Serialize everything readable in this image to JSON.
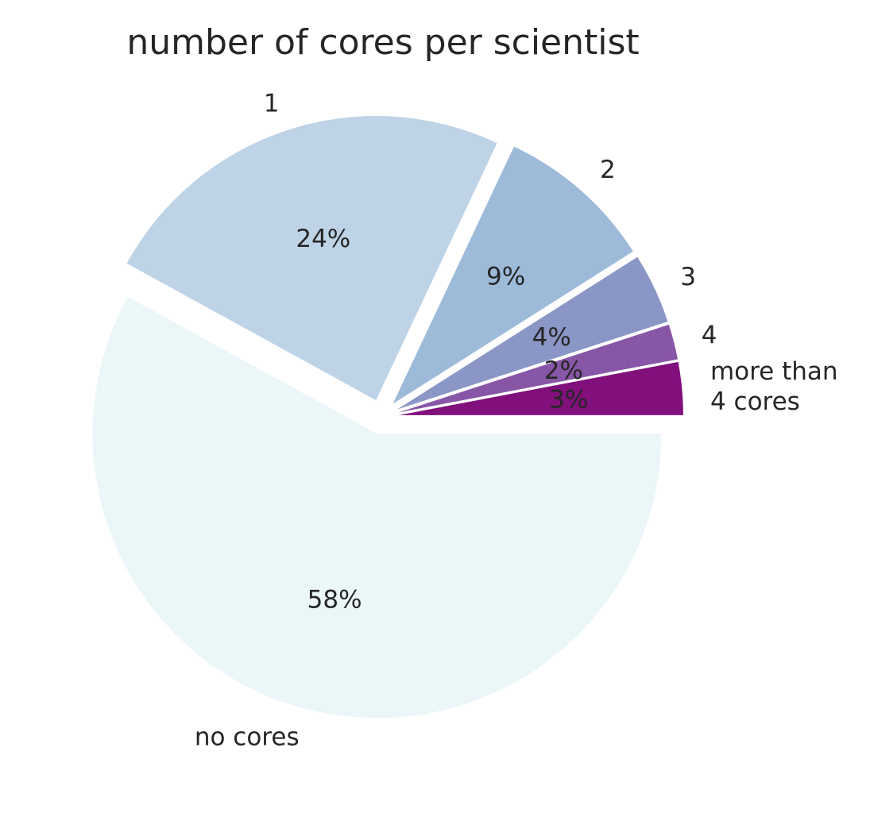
{
  "chart_data": {
    "type": "pie",
    "title": "number of cores per scientist",
    "slices": [
      {
        "label": "no cores",
        "value": 58,
        "pct_label": "58%",
        "color": "#ebf6f8"
      },
      {
        "label": "1",
        "value": 24,
        "pct_label": "24%",
        "color": "#bed3e6"
      },
      {
        "label": "2",
        "value": 9,
        "pct_label": "9%",
        "color": "#9ebad9"
      },
      {
        "label": "3",
        "value": 4,
        "pct_label": "4%",
        "color": "#8a96c6"
      },
      {
        "label": "4",
        "value": 2,
        "pct_label": "2%",
        "color": "#8856a7"
      },
      {
        "label": "more than\n4 cores",
        "value": 3,
        "pct_label": "3%",
        "color": "#810f7c"
      }
    ],
    "start_angle_deg": 0,
    "direction": "clockwise",
    "exploded": true,
    "legend": "none"
  }
}
